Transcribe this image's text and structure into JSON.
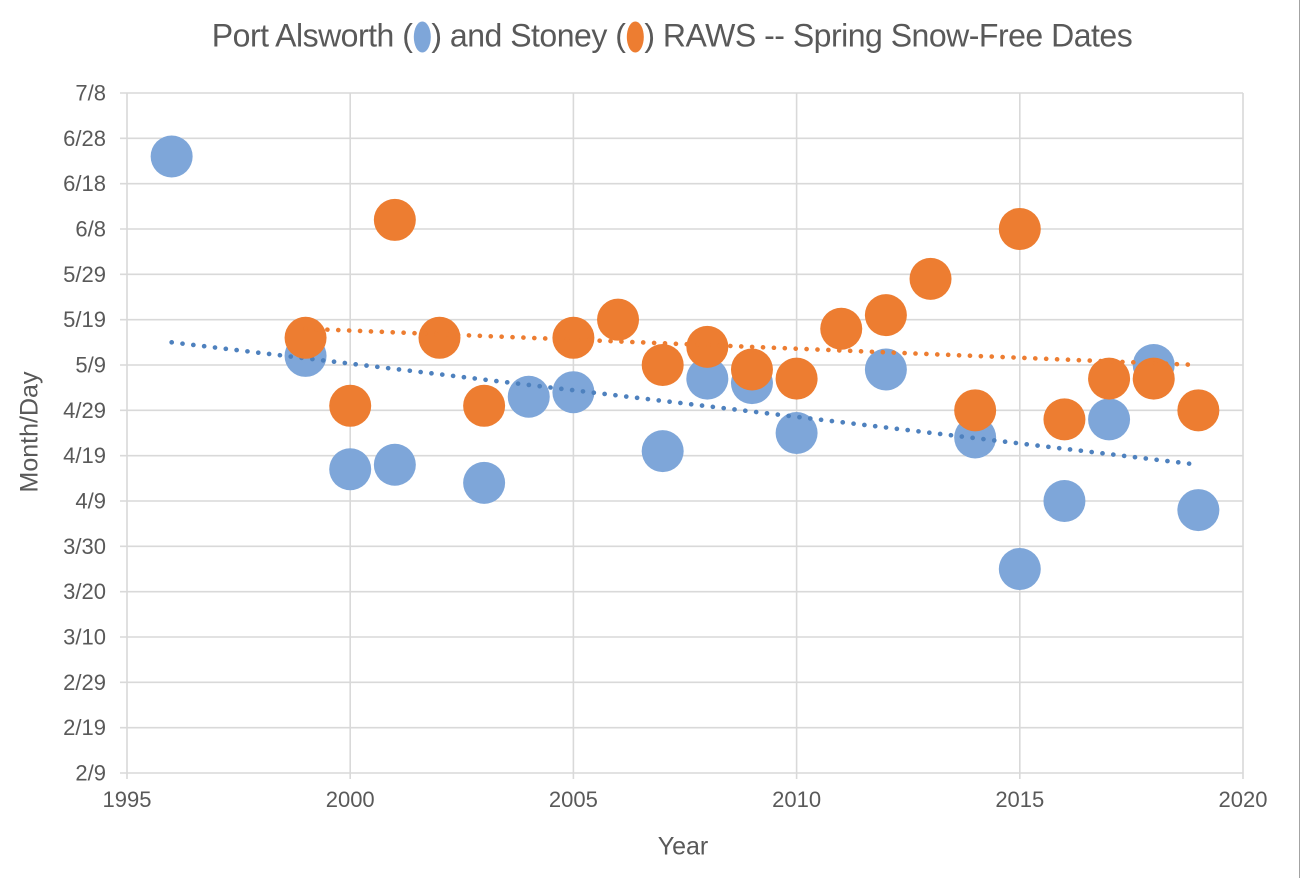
{
  "chart_data": {
    "type": "scatter",
    "title": {
      "part1": "Port Alsworth (",
      "part2": ") and Stoney (",
      "part3": ") RAWS -- Spring Snow-Free Dates",
      "marker1_color": "#7EA6D9",
      "marker2_color": "#ED7D31"
    },
    "xlabel": "Year",
    "ylabel": "Month/Day",
    "x_axis": {
      "min": 1995,
      "max": 2020,
      "ticks": [
        "1995",
        "2000",
        "2005",
        "2010",
        "2015",
        "2020"
      ]
    },
    "y_axis": {
      "ticks_top_to_bottom": [
        "7/8",
        "6/28",
        "6/18",
        "6/8",
        "5/29",
        "5/19",
        "5/9",
        "4/29",
        "4/19",
        "4/9",
        "3/30",
        "3/20",
        "3/10",
        "2/29",
        "2/19",
        "2/9"
      ]
    },
    "series": [
      {
        "name": "Port Alsworth",
        "marker_color": "#7EA6D9",
        "points": [
          {
            "year": 1996,
            "date": "6/24"
          },
          {
            "year": 1999,
            "date": "5/11"
          },
          {
            "year": 2000,
            "date": "4/16"
          },
          {
            "year": 2001,
            "date": "4/17"
          },
          {
            "year": 2003,
            "date": "4/13"
          },
          {
            "year": 2004,
            "date": "5/2"
          },
          {
            "year": 2005,
            "date": "5/3"
          },
          {
            "year": 2007,
            "date": "4/20"
          },
          {
            "year": 2008,
            "date": "5/6"
          },
          {
            "year": 2009,
            "date": "5/5"
          },
          {
            "year": 2010,
            "date": "4/24"
          },
          {
            "year": 2012,
            "date": "5/8"
          },
          {
            "year": 2014,
            "date": "4/23"
          },
          {
            "year": 2015,
            "date": "3/25"
          },
          {
            "year": 2016,
            "date": "4/9"
          },
          {
            "year": 2017,
            "date": "4/27"
          },
          {
            "year": 2018,
            "date": "5/9"
          },
          {
            "year": 2019,
            "date": "4/7"
          }
        ]
      },
      {
        "name": "Stoney",
        "marker_color": "#ED7D31",
        "points": [
          {
            "year": 1999,
            "date": "5/15"
          },
          {
            "year": 2000,
            "date": "4/30"
          },
          {
            "year": 2001,
            "date": "6/10"
          },
          {
            "year": 2002,
            "date": "5/15"
          },
          {
            "year": 2003,
            "date": "4/30"
          },
          {
            "year": 2005,
            "date": "5/15"
          },
          {
            "year": 2006,
            "date": "5/19"
          },
          {
            "year": 2007,
            "date": "5/9"
          },
          {
            "year": 2008,
            "date": "5/13"
          },
          {
            "year": 2009,
            "date": "5/8"
          },
          {
            "year": 2010,
            "date": "5/6"
          },
          {
            "year": 2011,
            "date": "5/17"
          },
          {
            "year": 2012,
            "date": "5/20"
          },
          {
            "year": 2013,
            "date": "5/28"
          },
          {
            "year": 2014,
            "date": "4/29"
          },
          {
            "year": 2015,
            "date": "6/8"
          },
          {
            "year": 2016,
            "date": "4/27"
          },
          {
            "year": 2017,
            "date": "5/6"
          },
          {
            "year": 2018,
            "date": "5/6"
          },
          {
            "year": 2019,
            "date": "4/29"
          }
        ]
      }
    ],
    "trendlines": [
      {
        "series": "Port Alsworth",
        "style": "dotted",
        "color": "#4E81BE",
        "start": {
          "year": 1996,
          "date": "5/14"
        },
        "end": {
          "year": 2019,
          "date": "4/17"
        }
      },
      {
        "series": "Stoney",
        "style": "dotted",
        "color": "#ED7D31",
        "start": {
          "year": 1999,
          "date": "5/17"
        },
        "end": {
          "year": 2019,
          "date": "5/9"
        }
      }
    ],
    "gridline_color": "#D9D9D9",
    "text_color": "#595959"
  }
}
